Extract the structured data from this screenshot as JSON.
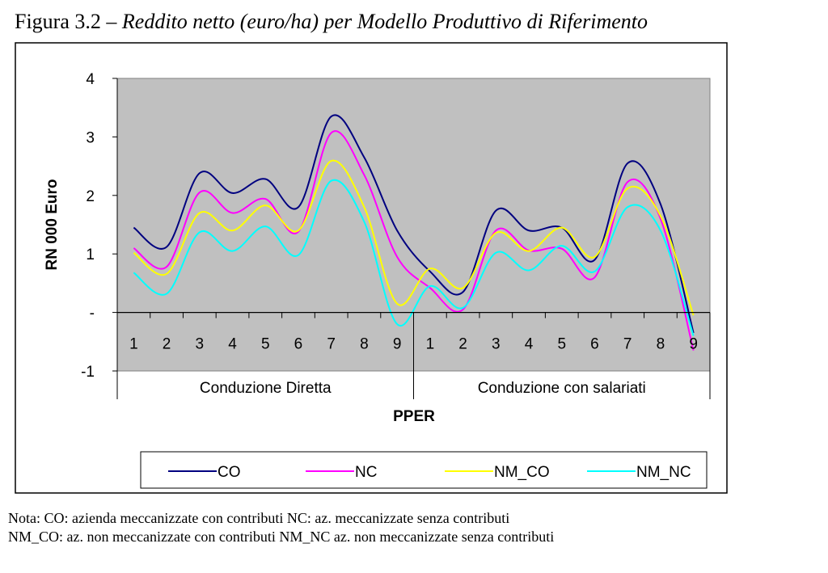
{
  "caption": {
    "prefix": "Figura 3.2 – ",
    "title": "Reddito netto (euro/ha) per Modello Produttivo di Riferimento"
  },
  "notes": [
    "Nota: CO: azienda meccanizzate con contributi NC: az. meccanizzate senza contributi",
    "NM_CO: az. non meccanizzate con contributi NM_NC  az. non meccanizzate senza contributi"
  ],
  "chart_data": {
    "type": "line",
    "title": "",
    "xlabel": "PPER",
    "ylabel": "RN 000 Euro",
    "ylim": [
      -1,
      4
    ],
    "ytick_labels": [
      "-1",
      "-",
      "1",
      "2",
      "3",
      "4"
    ],
    "ytick_values": [
      -1,
      0,
      1,
      2,
      3,
      4
    ],
    "groups": [
      "Conduzione Diretta",
      "Conduzione con salariati"
    ],
    "categories": [
      "1",
      "2",
      "3",
      "4",
      "5",
      "6",
      "7",
      "8",
      "9",
      "1",
      "2",
      "3",
      "4",
      "5",
      "6",
      "7",
      "8",
      "9"
    ],
    "legend_position": "bottom",
    "plot_background": "#c0c0c0",
    "series": [
      {
        "name": "CO",
        "color": "#000080",
        "values": [
          1.45,
          1.12,
          2.38,
          2.04,
          2.28,
          1.8,
          3.35,
          2.65,
          1.4,
          0.7,
          0.35,
          1.74,
          1.4,
          1.45,
          0.9,
          2.55,
          1.85,
          -0.35
        ]
      },
      {
        "name": "NC",
        "color": "#ff00ff",
        "values": [
          1.1,
          0.78,
          2.05,
          1.7,
          1.94,
          1.38,
          3.07,
          2.35,
          0.95,
          0.42,
          0.05,
          1.4,
          1.06,
          1.09,
          0.6,
          2.23,
          1.6,
          -0.65
        ]
      },
      {
        "name": "NM_CO",
        "color": "#ffff00",
        "values": [
          1.02,
          0.66,
          1.7,
          1.4,
          1.83,
          1.4,
          2.59,
          1.8,
          0.15,
          0.75,
          0.42,
          1.36,
          1.05,
          1.45,
          0.95,
          2.12,
          1.65,
          -0.05
        ]
      },
      {
        "name": "NM_NC",
        "color": "#00ffff",
        "values": [
          0.68,
          0.32,
          1.37,
          1.05,
          1.47,
          0.98,
          2.25,
          1.55,
          -0.2,
          0.45,
          0.08,
          1.02,
          0.72,
          1.14,
          0.7,
          1.8,
          1.4,
          -0.4
        ]
      }
    ]
  }
}
